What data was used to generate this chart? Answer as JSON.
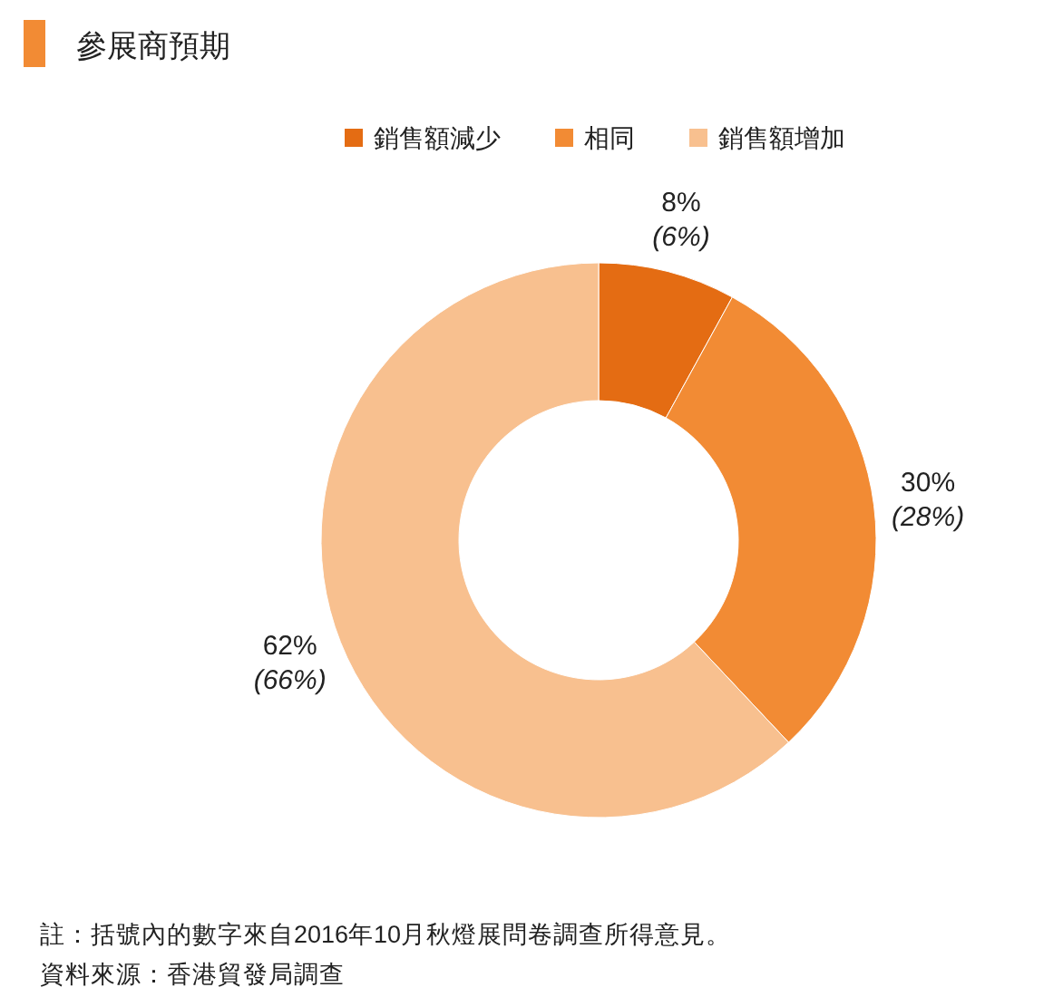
{
  "chart_data": {
    "type": "donut",
    "title": "參展商預期",
    "categories": [
      "銷售額減少",
      "相同",
      "銷售額增加"
    ],
    "values": [
      8,
      30,
      62
    ],
    "colors": [
      "#e46c13",
      "#f28b34",
      "#f8c08f"
    ],
    "value_labels": [
      "8%\n(6%)",
      "30%\n(28%)",
      "62%\n(66%)"
    ],
    "legend": "top",
    "annotations": [
      "註：括號內的數字來自2016年10月秋燈展問卷調查所得意見。",
      "資料來源：香港貿發局調查"
    ]
  }
}
